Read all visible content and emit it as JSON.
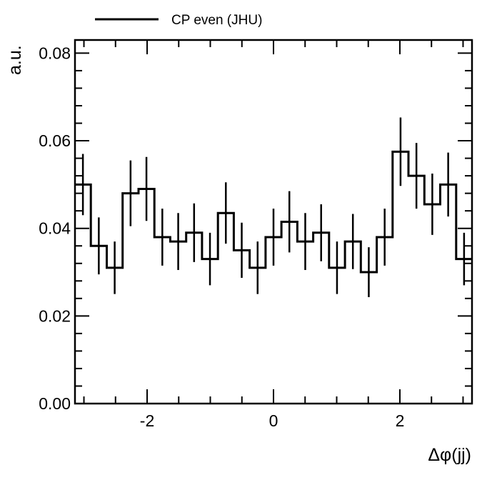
{
  "chart_data": {
    "type": "histogram-step",
    "xlabel": "Δφ(jj)",
    "ylabel": "a.u.",
    "xlim": [
      -3.1416,
      3.1416
    ],
    "ylim": [
      0,
      0.083
    ],
    "xticks": [
      -2,
      0,
      2
    ],
    "xtick_labels": [
      "-2",
      "0",
      "2"
    ],
    "yticks": [
      0.0,
      0.02,
      0.04,
      0.06,
      0.08
    ],
    "ytick_labels": [
      "0.00",
      "0.02",
      "0.04",
      "0.06",
      "0.08"
    ],
    "grid": false,
    "legend": {
      "position": "top-left",
      "entries": [
        "CP even (JHU)"
      ]
    },
    "series": [
      {
        "name": "CP even (JHU)",
        "bin_edges": [
          -3.1416,
          -2.8903,
          -2.6389,
          -2.3876,
          -2.1363,
          -1.885,
          -1.6336,
          -1.3823,
          -1.131,
          -0.8796,
          -0.6283,
          -0.377,
          -0.1257,
          0.1257,
          0.377,
          0.6283,
          0.8796,
          1.131,
          1.3823,
          1.6336,
          1.885,
          2.1363,
          2.3876,
          2.6389,
          2.8903,
          3.1416
        ],
        "values": [
          0.05,
          0.036,
          0.031,
          0.048,
          0.049,
          0.038,
          0.037,
          0.039,
          0.033,
          0.0435,
          0.035,
          0.031,
          0.038,
          0.0415,
          0.037,
          0.039,
          0.031,
          0.037,
          0.03,
          0.038,
          0.0575,
          0.052,
          0.0455,
          0.05,
          0.033
        ],
        "errors": [
          0.007,
          0.0065,
          0.006,
          0.0075,
          0.0073,
          0.0065,
          0.0065,
          0.0067,
          0.006,
          0.007,
          0.0063,
          0.006,
          0.0065,
          0.007,
          0.0065,
          0.0065,
          0.006,
          0.0063,
          0.0057,
          0.0065,
          0.0078,
          0.0075,
          0.007,
          0.0073,
          0.006
        ]
      }
    ]
  }
}
